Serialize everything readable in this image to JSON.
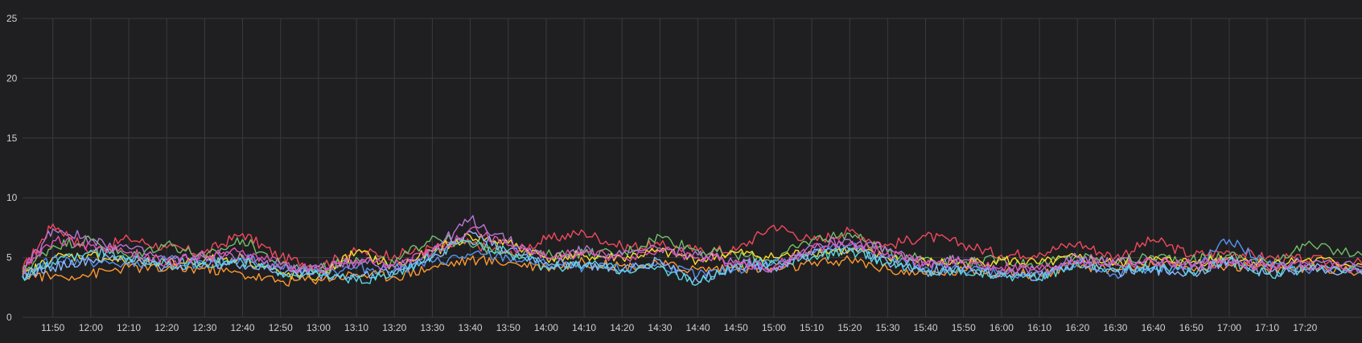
{
  "chart_data": {
    "type": "line",
    "title": "",
    "xlabel": "",
    "ylabel": "",
    "ylim": [
      0,
      25
    ],
    "xlim": [
      "11:42",
      "17:35"
    ],
    "grid": true,
    "legend": "none",
    "y_ticks": [
      0,
      5,
      10,
      15,
      20,
      25
    ],
    "x_ticks": [
      "11:50",
      "12:00",
      "12:10",
      "12:20",
      "12:30",
      "12:40",
      "12:50",
      "13:00",
      "13:10",
      "13:20",
      "13:30",
      "13:40",
      "13:50",
      "14:00",
      "14:10",
      "14:20",
      "14:30",
      "14:40",
      "14:50",
      "15:00",
      "15:10",
      "15:20",
      "15:30",
      "15:40",
      "15:50",
      "16:00",
      "16:10",
      "16:20",
      "16:30",
      "16:40",
      "16:50",
      "17:00",
      "17:10",
      "17:20"
    ],
    "series": [
      {
        "color": "#F2495C",
        "x": [
          "11:42",
          "11:50",
          "12:00",
          "12:10",
          "12:20",
          "12:30",
          "12:40",
          "12:50",
          "13:00",
          "13:10",
          "13:20",
          "13:30",
          "13:40",
          "13:50",
          "14:00",
          "14:10",
          "14:20",
          "14:30",
          "14:40",
          "14:50",
          "15:00",
          "15:10",
          "15:20",
          "15:30",
          "15:40",
          "15:50",
          "16:00",
          "16:10",
          "16:20",
          "16:30",
          "16:40",
          "16:50",
          "17:00",
          "17:10",
          "17:20",
          "17:35"
        ],
        "values": [
          4.0,
          7.8,
          5.5,
          6.6,
          5.8,
          5.4,
          7.0,
          5.0,
          4.3,
          5.5,
          5.2,
          5.8,
          6.2,
          5.3,
          6.5,
          7.1,
          5.9,
          6.0,
          5.6,
          5.6,
          7.7,
          6.4,
          7.2,
          6.0,
          6.8,
          6.1,
          5.2,
          5.4,
          6.2,
          5.0,
          6.5,
          5.2,
          5.5,
          5.0,
          4.8,
          4.5
        ]
      },
      {
        "color": "#73BF69",
        "x": [
          "11:42",
          "11:50",
          "12:00",
          "12:10",
          "12:20",
          "12:30",
          "12:40",
          "12:50",
          "13:00",
          "13:10",
          "13:20",
          "13:30",
          "13:40",
          "13:50",
          "14:00",
          "14:10",
          "14:20",
          "14:30",
          "14:40",
          "14:50",
          "15:00",
          "15:10",
          "15:20",
          "15:30",
          "15:40",
          "15:50",
          "16:00",
          "16:10",
          "16:20",
          "16:30",
          "16:40",
          "16:50",
          "17:00",
          "17:10",
          "17:20",
          "17:35"
        ],
        "values": [
          3.8,
          6.0,
          6.5,
          5.0,
          6.2,
          5.0,
          6.5,
          4.4,
          4.0,
          5.0,
          4.5,
          6.8,
          6.0,
          5.5,
          5.2,
          5.4,
          5.3,
          6.8,
          5.6,
          5.2,
          4.8,
          6.5,
          7.0,
          5.4,
          5.0,
          4.6,
          4.8,
          4.4,
          5.1,
          4.6,
          5.1,
          4.8,
          5.2,
          4.6,
          6.0,
          5.2
        ]
      },
      {
        "color": "#FADE2A",
        "x": [
          "11:42",
          "11:50",
          "12:00",
          "12:10",
          "12:20",
          "12:30",
          "12:40",
          "12:50",
          "13:00",
          "13:10",
          "13:20",
          "13:30",
          "13:40",
          "13:50",
          "14:00",
          "14:10",
          "14:20",
          "14:30",
          "14:40",
          "14:50",
          "15:00",
          "15:10",
          "15:20",
          "15:30",
          "15:40",
          "15:50",
          "16:00",
          "16:10",
          "16:20",
          "16:30",
          "16:40",
          "16:50",
          "17:00",
          "17:10",
          "17:20",
          "17:35"
        ],
        "values": [
          3.4,
          5.0,
          5.2,
          4.6,
          4.5,
          4.8,
          5.0,
          3.6,
          3.4,
          5.5,
          4.2,
          5.5,
          6.8,
          6.2,
          5.0,
          5.1,
          5.0,
          5.5,
          4.8,
          5.4,
          5.0,
          5.5,
          5.6,
          5.0,
          4.6,
          4.5,
          4.8,
          4.5,
          5.0,
          4.5,
          4.8,
          4.6,
          5.0,
          4.5,
          4.8,
          4.4
        ]
      },
      {
        "color": "#FF9830",
        "x": [
          "11:42",
          "11:50",
          "12:00",
          "12:10",
          "12:20",
          "12:30",
          "12:40",
          "12:50",
          "13:00",
          "13:10",
          "13:20",
          "13:30",
          "13:40",
          "13:50",
          "14:00",
          "14:10",
          "14:20",
          "14:30",
          "14:40",
          "14:50",
          "15:00",
          "15:10",
          "15:20",
          "15:30",
          "15:40",
          "15:50",
          "16:00",
          "16:10",
          "16:20",
          "16:30",
          "16:40",
          "16:50",
          "17:00",
          "17:10",
          "17:20",
          "17:35"
        ],
        "values": [
          3.6,
          3.4,
          3.6,
          4.2,
          4.0,
          4.1,
          3.6,
          3.0,
          3.2,
          3.6,
          3.4,
          4.2,
          4.8,
          4.6,
          4.2,
          4.6,
          4.3,
          4.4,
          4.0,
          4.2,
          4.0,
          4.4,
          4.8,
          4.0,
          3.6,
          3.9,
          3.8,
          3.6,
          4.3,
          4.0,
          4.4,
          4.1,
          4.4,
          4.0,
          4.2,
          3.8
        ]
      },
      {
        "color": "#5794F2",
        "x": [
          "11:42",
          "11:50",
          "12:00",
          "12:10",
          "12:20",
          "12:30",
          "12:40",
          "12:50",
          "13:00",
          "13:10",
          "13:20",
          "13:30",
          "13:40",
          "13:50",
          "14:00",
          "14:10",
          "14:20",
          "14:30",
          "14:40",
          "14:50",
          "15:00",
          "15:10",
          "15:20",
          "15:30",
          "15:40",
          "15:50",
          "16:00",
          "16:10",
          "16:20",
          "16:30",
          "16:40",
          "16:50",
          "17:00",
          "17:10",
          "17:20",
          "17:35"
        ],
        "values": [
          3.3,
          4.9,
          4.6,
          4.4,
          4.8,
          4.4,
          5.0,
          4.2,
          3.8,
          4.1,
          4.0,
          4.6,
          5.2,
          5.0,
          4.4,
          4.2,
          4.0,
          4.4,
          3.5,
          4.0,
          4.6,
          5.5,
          6.0,
          5.0,
          4.2,
          4.0,
          3.8,
          3.5,
          4.5,
          3.6,
          4.2,
          4.0,
          6.5,
          4.4,
          4.0,
          4.0
        ]
      },
      {
        "color": "#8AB8FF",
        "x": [
          "11:42",
          "11:50",
          "12:00",
          "12:10",
          "12:20",
          "12:30",
          "12:40",
          "12:50",
          "13:00",
          "13:10",
          "13:20",
          "13:30",
          "13:40",
          "13:50",
          "14:00",
          "14:10",
          "14:20",
          "14:30",
          "14:40",
          "14:50",
          "15:00",
          "15:10",
          "15:20",
          "15:30",
          "15:40",
          "15:50",
          "16:00",
          "16:10",
          "16:20",
          "16:30",
          "16:40",
          "16:50",
          "17:00",
          "17:10",
          "17:20",
          "17:35"
        ],
        "values": [
          3.5,
          4.2,
          4.8,
          5.0,
          4.2,
          4.6,
          4.4,
          3.8,
          3.6,
          3.4,
          3.8,
          5.0,
          7.2,
          5.6,
          4.6,
          4.4,
          3.9,
          4.8,
          3.0,
          4.4,
          4.2,
          5.2,
          5.8,
          4.6,
          3.8,
          4.2,
          3.4,
          3.4,
          4.6,
          3.8,
          4.0,
          3.7,
          4.8,
          3.6,
          4.2,
          3.6
        ]
      },
      {
        "color": "#5AD8E0",
        "x": [
          "11:42",
          "11:50",
          "12:00",
          "12:10",
          "12:20",
          "12:30",
          "12:40",
          "12:50",
          "13:00",
          "13:10",
          "13:20",
          "13:30",
          "13:40",
          "13:50",
          "14:00",
          "14:10",
          "14:20",
          "14:30",
          "14:40",
          "14:50",
          "15:00",
          "15:10",
          "15:20",
          "15:30",
          "15:40",
          "15:50",
          "16:00",
          "16:10",
          "16:20",
          "16:30",
          "16:40",
          "16:50",
          "17:00",
          "17:10",
          "17:20",
          "17:35"
        ],
        "values": [
          3.4,
          4.6,
          5.6,
          5.0,
          4.4,
          4.6,
          4.6,
          3.8,
          3.6,
          3.0,
          3.6,
          5.2,
          6.4,
          5.4,
          4.2,
          4.4,
          4.0,
          4.2,
          2.8,
          4.4,
          4.6,
          5.0,
          5.6,
          4.6,
          3.8,
          3.9,
          3.6,
          3.2,
          4.6,
          4.0,
          4.2,
          3.8,
          4.8,
          3.6,
          4.0,
          3.8
        ]
      },
      {
        "color": "#B877D9",
        "x": [
          "11:42",
          "11:50",
          "12:00",
          "12:10",
          "12:20",
          "12:30",
          "12:40",
          "12:50",
          "13:00",
          "13:10",
          "13:20",
          "13:30",
          "13:40",
          "13:50",
          "14:00",
          "14:10",
          "14:20",
          "14:30",
          "14:40",
          "14:50",
          "15:00",
          "15:10",
          "15:20",
          "15:30",
          "15:40",
          "15:50",
          "16:00",
          "16:10",
          "16:20",
          "16:30",
          "16:40",
          "16:50",
          "17:00",
          "17:10",
          "17:20",
          "17:35"
        ],
        "values": [
          3.8,
          7.4,
          6.5,
          5.8,
          4.8,
          5.0,
          5.2,
          4.0,
          4.2,
          4.6,
          4.2,
          5.6,
          8.2,
          6.4,
          5.0,
          5.6,
          5.2,
          5.8,
          5.2,
          4.8,
          4.0,
          6.0,
          6.5,
          5.6,
          4.6,
          4.8,
          4.0,
          3.8,
          5.0,
          4.6,
          4.8,
          4.2,
          4.6,
          4.4,
          4.6,
          4.2
        ]
      },
      {
        "color": "#E055B5",
        "x": [
          "11:42",
          "11:50",
          "12:00",
          "12:10",
          "12:20",
          "12:30",
          "12:40",
          "12:50",
          "13:00",
          "13:10",
          "13:20",
          "13:30",
          "13:40",
          "13:50",
          "14:00",
          "14:10",
          "14:20",
          "14:30",
          "14:40",
          "14:50",
          "15:00",
          "15:10",
          "15:20",
          "15:30",
          "15:40",
          "15:50",
          "16:00",
          "16:10",
          "16:20",
          "16:30",
          "16:40",
          "16:50",
          "17:00",
          "17:10",
          "17:20",
          "17:35"
        ],
        "values": [
          4.2,
          6.4,
          6.0,
          5.4,
          4.6,
          5.2,
          5.6,
          4.4,
          4.0,
          4.8,
          4.4,
          5.4,
          7.4,
          6.0,
          5.0,
          5.4,
          5.0,
          5.6,
          5.0,
          4.6,
          4.2,
          5.8,
          6.2,
          5.4,
          4.4,
          4.6,
          4.2,
          4.0,
          4.8,
          4.4,
          4.6,
          4.4,
          4.6,
          4.2,
          4.4,
          4.0
        ]
      }
    ]
  }
}
